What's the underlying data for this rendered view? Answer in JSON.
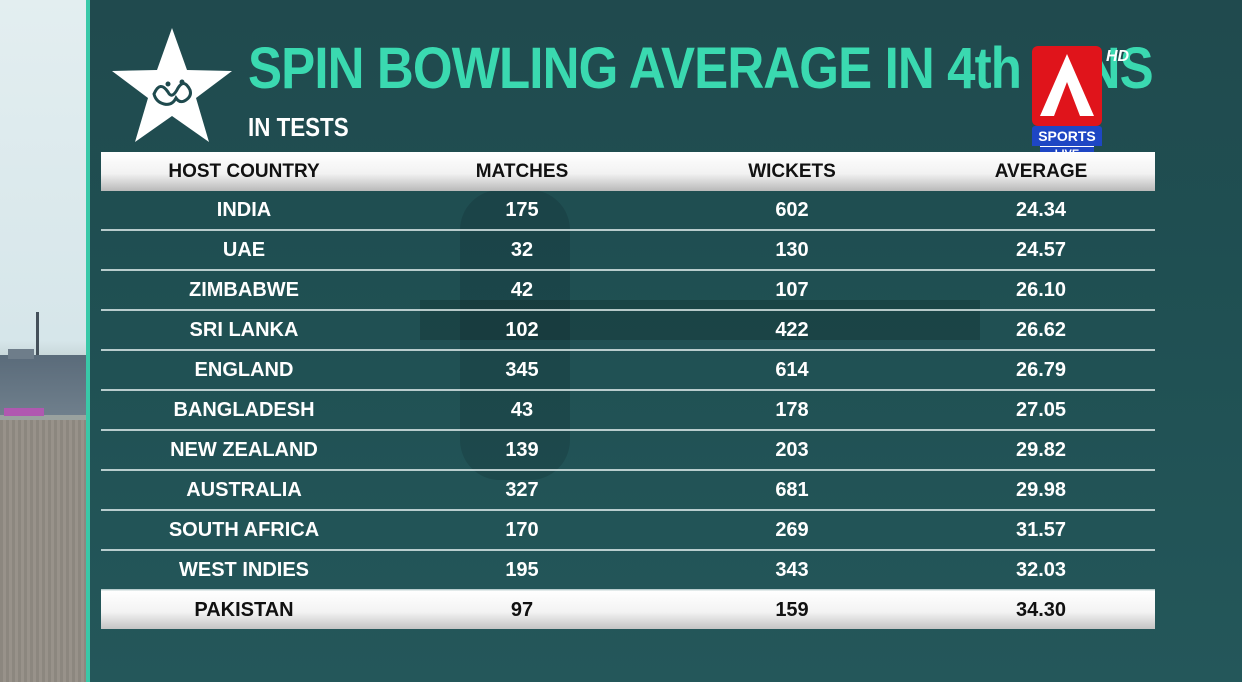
{
  "header": {
    "title": "SPIN BOWLING AVERAGE IN 4th INNS",
    "subtitle": "IN TESTS"
  },
  "logos": {
    "emblem": "star-crest-icon",
    "channel": {
      "hd": "HD",
      "sports": "SPORTS",
      "live": "LIVE"
    }
  },
  "colors": {
    "title": "#3ad9b0",
    "panel": "#1f4a4e",
    "accent_edge": "#39c8a8",
    "channel_red": "#e0141b",
    "channel_blue": "#1e46c4"
  },
  "table": {
    "columns": [
      "HOST COUNTRY",
      "MATCHES",
      "WICKETS",
      "AVERAGE"
    ],
    "rows": [
      {
        "country": "INDIA",
        "matches": "175",
        "wickets": "602",
        "average": "24.34"
      },
      {
        "country": "UAE",
        "matches": "32",
        "wickets": "130",
        "average": "24.57"
      },
      {
        "country": "ZIMBABWE",
        "matches": "42",
        "wickets": "107",
        "average": "26.10"
      },
      {
        "country": "SRI LANKA",
        "matches": "102",
        "wickets": "422",
        "average": "26.62"
      },
      {
        "country": "ENGLAND",
        "matches": "345",
        "wickets": "614",
        "average": "26.79"
      },
      {
        "country": "BANGLADESH",
        "matches": "43",
        "wickets": "178",
        "average": "27.05"
      },
      {
        "country": "NEW ZEALAND",
        "matches": "139",
        "wickets": "203",
        "average": "29.82"
      },
      {
        "country": "AUSTRALIA",
        "matches": "327",
        "wickets": "681",
        "average": "29.98"
      },
      {
        "country": "SOUTH AFRICA",
        "matches": "170",
        "wickets": "269",
        "average": "31.57"
      },
      {
        "country": "WEST INDIES",
        "matches": "195",
        "wickets": "343",
        "average": "32.03"
      },
      {
        "country": "PAKISTAN",
        "matches": "97",
        "wickets": "159",
        "average": "34.30",
        "highlight": true
      }
    ]
  }
}
